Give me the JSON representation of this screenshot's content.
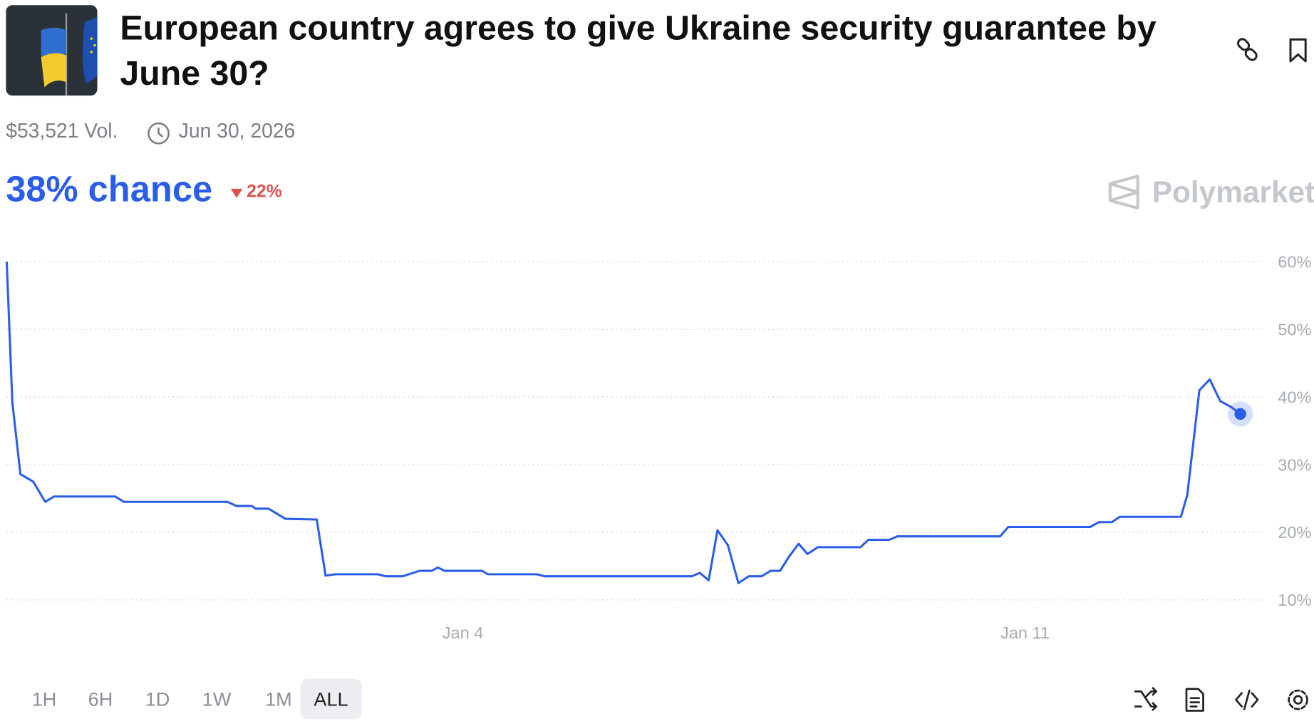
{
  "header": {
    "title": "European country agrees to give Ukraine security guarantee by June 30?",
    "volume": "$53,521 Vol.",
    "end_date": "Jun 30, 2026"
  },
  "chance": {
    "label": "38% chance",
    "change": "22%"
  },
  "brand": "Polymarket",
  "range_buttons": [
    "1H",
    "6H",
    "1D",
    "1W",
    "1M",
    "ALL"
  ],
  "selected_range": "ALL",
  "chart_data": {
    "type": "line",
    "color": "#2a5ee8",
    "x": [
      -1.68,
      -1.61,
      -1.51,
      -1.35,
      -1.2,
      -1.09,
      -0.33,
      -0.22,
      1.07,
      1.18,
      1.37,
      1.42,
      1.58,
      1.79,
      2.18,
      2.29,
      2.41,
      2.94,
      3.04,
      3.25,
      3.46,
      3.61,
      3.69,
      3.77,
      4.24,
      4.31,
      4.92,
      5.02,
      6.85,
      6.95,
      7.06,
      7.17,
      7.3,
      7.43,
      7.56,
      7.72,
      7.83,
      7.95,
      8.06,
      8.18,
      8.29,
      8.42,
      8.95,
      9.05,
      9.31,
      9.41,
      10.69,
      10.79,
      11.81,
      11.92,
      12.08,
      12.18,
      12.94,
      13.02,
      13.17,
      13.3,
      13.43,
      13.57,
      13.68
    ],
    "values": [
      60,
      39.2,
      28.6,
      27.5,
      24.5,
      25.3,
      25.3,
      24.5,
      24.5,
      23.9,
      23.9,
      23.5,
      23.5,
      22.0,
      21.9,
      13.6,
      13.8,
      13.8,
      13.5,
      13.5,
      14.3,
      14.3,
      14.8,
      14.3,
      14.3,
      13.8,
      13.8,
      13.5,
      13.5,
      14.0,
      12.9,
      20.3,
      18.1,
      12.5,
      13.5,
      13.5,
      14.3,
      14.3,
      16.4,
      18.3,
      16.8,
      17.8,
      17.8,
      18.9,
      18.9,
      19.4,
      19.4,
      20.8,
      20.8,
      21.5,
      21.5,
      22.3,
      22.3,
      25.5,
      41.0,
      42.6,
      39.4,
      38.5,
      37.5
    ],
    "xlim": [
      -1.68,
      13.96
    ],
    "xticks": [
      {
        "value": 4,
        "label": "Jan 4"
      },
      {
        "value": 11,
        "label": "Jan 11"
      }
    ],
    "ylim": [
      10,
      60
    ],
    "yticks": [
      {
        "value": 10,
        "label": "10%"
      },
      {
        "value": 20,
        "label": "20%"
      },
      {
        "value": 30,
        "label": "30%"
      },
      {
        "value": 40,
        "label": "40%"
      },
      {
        "value": 50,
        "label": "50%"
      },
      {
        "value": 60,
        "label": "60%"
      }
    ],
    "grid": true
  }
}
